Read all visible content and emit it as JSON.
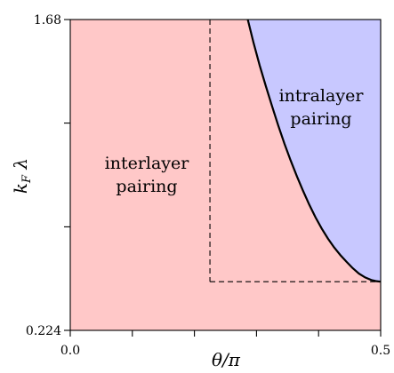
{
  "chart_data": {
    "type": "area",
    "title": "",
    "xlabel": "θ/π",
    "ylabel": "k_F λ",
    "xlim": [
      0.0,
      0.5
    ],
    "ylim": [
      0.224,
      1.68
    ],
    "x_ticks": [
      {
        "value": 0.0,
        "label": "0.0"
      },
      {
        "value": 0.1,
        "label": ""
      },
      {
        "value": 0.2,
        "label": ""
      },
      {
        "value": 0.3,
        "label": ""
      },
      {
        "value": 0.4,
        "label": ""
      },
      {
        "value": 0.5,
        "label": "0.5"
      }
    ],
    "y_ticks": [
      {
        "value": 0.224,
        "label": "0.224"
      },
      {
        "value": 0.709,
        "label": ""
      },
      {
        "value": 1.195,
        "label": ""
      },
      {
        "value": 1.68,
        "label": "1.68"
      }
    ],
    "regions": [
      {
        "name": "interlayer pairing",
        "label_lines": [
          "interlayer",
          "pairing"
        ],
        "color": "#ffc8c8"
      },
      {
        "name": "intralayer pairing",
        "label_lines": [
          "intralayer",
          "pairing"
        ],
        "color": "#c8c8ff"
      }
    ],
    "boundary_curve": {
      "x": [
        0.286,
        0.295,
        0.305,
        0.315,
        0.325,
        0.335,
        0.345,
        0.355,
        0.365,
        0.375,
        0.385,
        0.395,
        0.405,
        0.415,
        0.425,
        0.435,
        0.445,
        0.455,
        0.465,
        0.475,
        0.485,
        0.492,
        0.5
      ],
      "y": [
        1.68,
        1.574,
        1.466,
        1.368,
        1.274,
        1.184,
        1.099,
        1.02,
        0.946,
        0.877,
        0.813,
        0.754,
        0.701,
        0.654,
        0.613,
        0.577,
        0.545,
        0.515,
        0.49,
        0.472,
        0.46,
        0.455,
        0.452
      ]
    },
    "dashed_lines": [
      {
        "x": [
          0.225,
          0.225
        ],
        "y": [
          1.68,
          0.452
        ]
      },
      {
        "x": [
          0.225,
          0.5
        ],
        "y": [
          0.452,
          0.452
        ]
      }
    ],
    "grid": false,
    "legend": "none"
  }
}
